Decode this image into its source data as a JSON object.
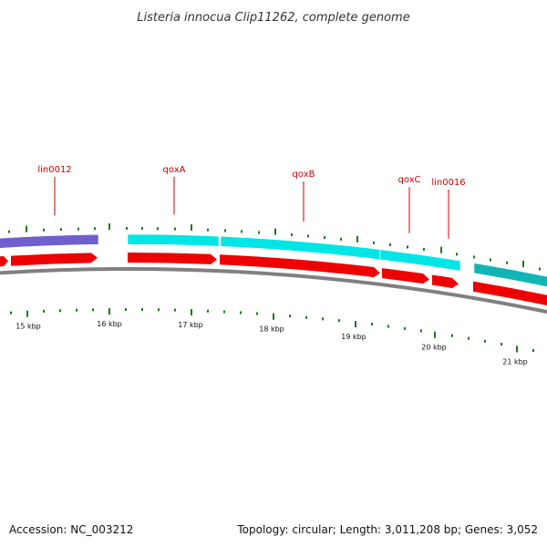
{
  "title": "Listeria innocua Clip11262, complete genome",
  "footer": {
    "accession": "Accession: NC_003212",
    "summary": "Topology: circular; Length: 3,011,208 bp; Genes: 3,052"
  },
  "colors": {
    "background": "#ffffff",
    "backbone": "#808080",
    "gc_tick": "#1a7a1a",
    "cds_red": "#ee0000",
    "gene_purple": "#6f5fcf",
    "gene_cyan": "#00e5e5",
    "gene_teal": "#12b5b5",
    "label_red": "#cc0000",
    "tick_label": "#111111"
  },
  "scale": {
    "ticks": [
      {
        "label": "15 kbp"
      },
      {
        "label": "16 kbp"
      },
      {
        "label": "17 kbp"
      },
      {
        "label": "18 kbp"
      },
      {
        "label": "19 kbp"
      },
      {
        "label": "20 kbp"
      },
      {
        "label": "21 kbp"
      }
    ]
  },
  "genes": [
    {
      "name": "lin0012",
      "color": "gene_purple",
      "labeled": true
    },
    {
      "name": "qoxA",
      "color": "gene_cyan",
      "labeled": true
    },
    {
      "name": "qoxB",
      "color": "gene_cyan",
      "labeled": true
    },
    {
      "name": "qoxC",
      "color": "gene_cyan",
      "labeled": true
    },
    {
      "name": "lin0016",
      "color": "gene_cyan",
      "labeled": true
    },
    {
      "name": "",
      "color": "gene_teal",
      "labeled": false
    }
  ],
  "cds": [
    {
      "name": "cds-1"
    },
    {
      "name": "cds-2"
    },
    {
      "name": "cds-3"
    },
    {
      "name": "cds-4"
    },
    {
      "name": "cds-5"
    },
    {
      "name": "cds-6"
    },
    {
      "name": "cds-7"
    }
  ]
}
